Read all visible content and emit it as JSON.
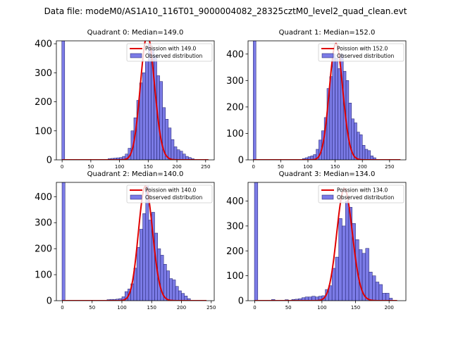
{
  "figure": {
    "suptitle": "Data file: modeM0/AS1A10_116T01_9000004082_28325cztM0_level2_quad_clean.evt"
  },
  "colors": {
    "bar_fill": "#7b7be6",
    "bar_edge": "#1a1a66",
    "fit_line": "#e00000"
  },
  "chart_data": [
    {
      "type": "bar",
      "title": "Quadrant 0: Median=149.0",
      "xlim": [
        -10,
        265
      ],
      "ylim": [
        0,
        410
      ],
      "xticks": [
        0,
        50,
        100,
        150,
        200,
        250
      ],
      "yticks": [
        0,
        100,
        200,
        300,
        400
      ],
      "bin_width": 5,
      "zero_bin_value": 410,
      "bins": [
        [
          80,
          4
        ],
        [
          85,
          5
        ],
        [
          90,
          6
        ],
        [
          95,
          7
        ],
        [
          100,
          8
        ],
        [
          105,
          12
        ],
        [
          110,
          20
        ],
        [
          115,
          40
        ],
        [
          120,
          100
        ],
        [
          125,
          145
        ],
        [
          130,
          205
        ],
        [
          135,
          265
        ],
        [
          140,
          300
        ],
        [
          145,
          340
        ],
        [
          150,
          400
        ],
        [
          155,
          380
        ],
        [
          160,
          360
        ],
        [
          165,
          290
        ],
        [
          170,
          270
        ],
        [
          175,
          180
        ],
        [
          180,
          140
        ],
        [
          185,
          110
        ],
        [
          190,
          70
        ],
        [
          195,
          45
        ],
        [
          200,
          35
        ],
        [
          205,
          30
        ],
        [
          210,
          20
        ],
        [
          215,
          12
        ],
        [
          220,
          8
        ],
        [
          225,
          4
        ]
      ],
      "fit": {
        "lambda": 149.0,
        "amplitude": 430,
        "range": [
          0,
          255
        ]
      },
      "legend": {
        "line": "Poission with 149.0",
        "bars": "Observed distribution"
      }
    },
    {
      "type": "bar",
      "title": "Quadrant 1: Median=152.0",
      "xlim": [
        -10,
        280
      ],
      "ylim": [
        0,
        450
      ],
      "xticks": [
        0,
        50,
        100,
        150,
        200,
        250
      ],
      "yticks": [
        0,
        100,
        200,
        300,
        400
      ],
      "bin_width": 5,
      "zero_bin_value": 450,
      "bins": [
        [
          90,
          5
        ],
        [
          95,
          8
        ],
        [
          100,
          12
        ],
        [
          105,
          15
        ],
        [
          110,
          20
        ],
        [
          115,
          40
        ],
        [
          120,
          75
        ],
        [
          125,
          110
        ],
        [
          130,
          160
        ],
        [
          135,
          270
        ],
        [
          140,
          315
        ],
        [
          145,
          400
        ],
        [
          150,
          385
        ],
        [
          155,
          345
        ],
        [
          160,
          400
        ],
        [
          165,
          335
        ],
        [
          170,
          300
        ],
        [
          175,
          215
        ],
        [
          180,
          155
        ],
        [
          185,
          140
        ],
        [
          190,
          105
        ],
        [
          195,
          95
        ],
        [
          200,
          55
        ],
        [
          205,
          40
        ],
        [
          210,
          35
        ],
        [
          215,
          15
        ],
        [
          220,
          8
        ]
      ],
      "fit": {
        "lambda": 152.0,
        "amplitude": 440,
        "range": [
          0,
          270
        ]
      },
      "legend": {
        "line": "Poission with 152.0",
        "bars": "Observed distribution"
      }
    },
    {
      "type": "bar",
      "title": "Quadrant 2: Median=140.0",
      "xlim": [
        -10,
        255
      ],
      "ylim": [
        0,
        455
      ],
      "xticks": [
        0,
        50,
        100,
        150,
        200,
        250
      ],
      "yticks": [
        0,
        100,
        200,
        300,
        400
      ],
      "bin_width": 5,
      "zero_bin_value": 455,
      "bins": [
        [
          75,
          4
        ],
        [
          80,
          5
        ],
        [
          85,
          5
        ],
        [
          90,
          6
        ],
        [
          95,
          8
        ],
        [
          100,
          15
        ],
        [
          105,
          35
        ],
        [
          110,
          45
        ],
        [
          115,
          65
        ],
        [
          120,
          125
        ],
        [
          125,
          205
        ],
        [
          130,
          275
        ],
        [
          135,
          335
        ],
        [
          140,
          440
        ],
        [
          145,
          310
        ],
        [
          150,
          340
        ],
        [
          155,
          260
        ],
        [
          160,
          200
        ],
        [
          165,
          175
        ],
        [
          170,
          140
        ],
        [
          175,
          115
        ],
        [
          180,
          85
        ],
        [
          185,
          80
        ],
        [
          190,
          55
        ],
        [
          195,
          38
        ],
        [
          200,
          28
        ],
        [
          205,
          18
        ],
        [
          210,
          8
        ]
      ],
      "fit": {
        "lambda": 140.0,
        "amplitude": 440,
        "range": [
          0,
          242
        ]
      },
      "legend": {
        "line": "Poission with 140.0",
        "bars": "Observed distribution"
      }
    },
    {
      "type": "bar",
      "title": "Quadrant 3: Median=134.0",
      "xlim": [
        -10,
        225
      ],
      "ylim": [
        0,
        475
      ],
      "xticks": [
        0,
        50,
        100,
        150,
        200
      ],
      "yticks": [
        0,
        100,
        200,
        300,
        400
      ],
      "bin_width": 5,
      "zero_bin_value": 475,
      "bins": [
        [
          25,
          5
        ],
        [
          45,
          4
        ],
        [
          55,
          5
        ],
        [
          60,
          6
        ],
        [
          65,
          8
        ],
        [
          70,
          12
        ],
        [
          75,
          15
        ],
        [
          80,
          15
        ],
        [
          85,
          18
        ],
        [
          90,
          15
        ],
        [
          95,
          18
        ],
        [
          100,
          20
        ],
        [
          105,
          45
        ],
        [
          110,
          60
        ],
        [
          115,
          130
        ],
        [
          120,
          175
        ],
        [
          125,
          330
        ],
        [
          130,
          300
        ],
        [
          135,
          400
        ],
        [
          140,
          375
        ],
        [
          145,
          310
        ],
        [
          150,
          245
        ],
        [
          155,
          205
        ],
        [
          160,
          190
        ],
        [
          165,
          210
        ],
        [
          170,
          115
        ],
        [
          175,
          100
        ],
        [
          180,
          75
        ],
        [
          185,
          65
        ],
        [
          190,
          30
        ],
        [
          195,
          30
        ],
        [
          200,
          10
        ]
      ],
      "fit": {
        "lambda": 134.0,
        "amplitude": 450,
        "range": [
          0,
          212
        ]
      },
      "legend": {
        "line": "Poission with 134.0",
        "bars": "Observed distribution"
      }
    }
  ]
}
